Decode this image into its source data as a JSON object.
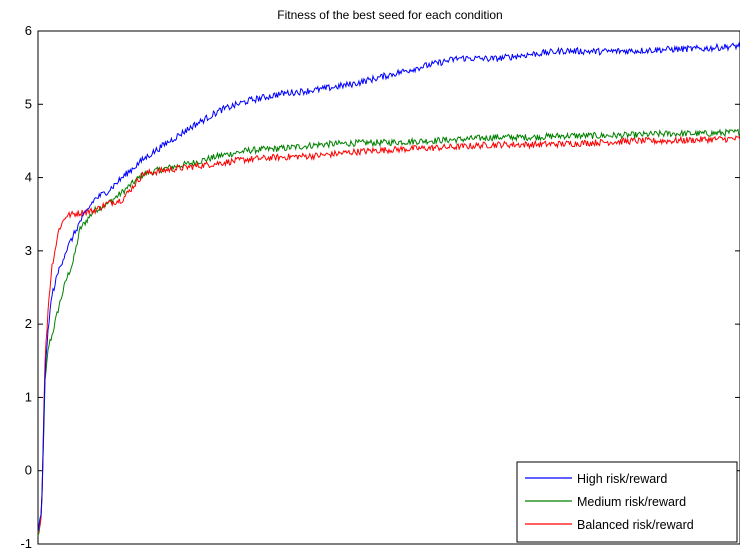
{
  "chart_data": {
    "type": "line",
    "title": "Fitness of the best seed for each condition",
    "xlabel": "",
    "ylabel": "",
    "x_tick_labels": [],
    "ylim": [
      -1,
      6
    ],
    "yticks": [
      "-1",
      "0",
      "1",
      "2",
      "3",
      "4",
      "5",
      "6"
    ],
    "legend_position": "bottom-right",
    "grid": false,
    "x": [
      0.0,
      0.005,
      0.01,
      0.015,
      0.02,
      0.03,
      0.04,
      0.05,
      0.06,
      0.08,
      0.1,
      0.12,
      0.15,
      0.18,
      0.22,
      0.26,
      0.3,
      0.35,
      0.4,
      0.45,
      0.5,
      0.55,
      0.6,
      0.65,
      0.7,
      0.75,
      0.8,
      0.85,
      0.9,
      0.95,
      1.0
    ],
    "series": [
      {
        "name": "High risk/reward",
        "color": "#0000ff",
        "values": [
          -0.85,
          -0.55,
          1.3,
          2.0,
          2.4,
          2.75,
          3.0,
          3.2,
          3.4,
          3.7,
          3.82,
          4.0,
          4.25,
          4.45,
          4.7,
          4.92,
          5.05,
          5.15,
          5.2,
          5.28,
          5.4,
          5.52,
          5.63,
          5.62,
          5.68,
          5.73,
          5.72,
          5.73,
          5.75,
          5.76,
          5.8
        ]
      },
      {
        "name": "Medium risk/reward",
        "color": "#008000",
        "values": [
          -0.9,
          -0.65,
          1.2,
          1.7,
          1.85,
          2.25,
          2.6,
          2.85,
          3.3,
          3.55,
          3.65,
          3.8,
          4.05,
          4.12,
          4.2,
          4.3,
          4.37,
          4.4,
          4.45,
          4.47,
          4.48,
          4.5,
          4.52,
          4.55,
          4.55,
          4.57,
          4.57,
          4.58,
          4.6,
          4.6,
          4.62
        ]
      },
      {
        "name": "Balanced risk/reward",
        "color": "#ff0000",
        "values": [
          -0.85,
          -0.6,
          1.5,
          2.3,
          2.8,
          3.3,
          3.48,
          3.5,
          3.52,
          3.55,
          3.65,
          3.7,
          4.05,
          4.1,
          4.15,
          4.2,
          4.25,
          4.28,
          4.3,
          4.35,
          4.38,
          4.4,
          4.42,
          4.45,
          4.45,
          4.46,
          4.48,
          4.5,
          4.5,
          4.52,
          4.53
        ]
      }
    ]
  }
}
